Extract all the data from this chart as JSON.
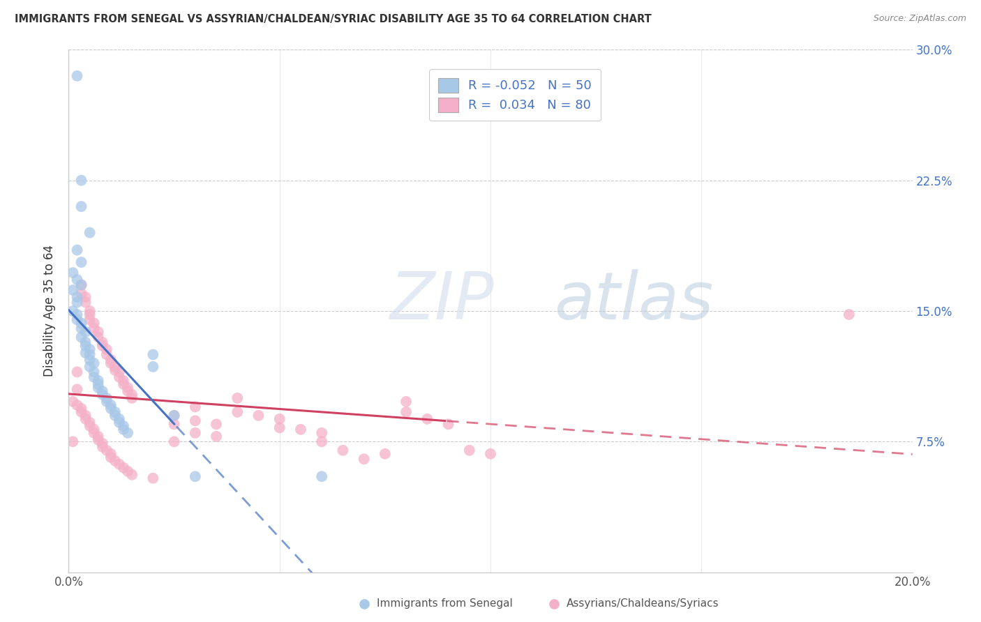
{
  "title": "IMMIGRANTS FROM SENEGAL VS ASSYRIAN/CHALDEAN/SYRIAC DISABILITY AGE 35 TO 64 CORRELATION CHART",
  "source": "Source: ZipAtlas.com",
  "ylabel": "Disability Age 35 to 64",
  "legend_blue_label": "Immigrants from Senegal",
  "legend_pink_label": "Assyrians/Chaldeans/Syriacs",
  "blue_scatter_color": "#a8c8e8",
  "pink_scatter_color": "#f4b0c8",
  "blue_line_color": "#4472c4",
  "pink_line_color": "#d04060",
  "legend_text_color": "#4472c4",
  "watermark_zip_color": "#c8d8ec",
  "watermark_atlas_color": "#b0c8e0",
  "xlim": [
    0.0,
    0.2
  ],
  "ylim": [
    0.0,
    0.3
  ],
  "yticks": [
    0.075,
    0.15,
    0.225,
    0.3
  ],
  "ytick_labels": [
    "7.5%",
    "15.0%",
    "22.5%",
    "30.0%"
  ],
  "xtick_labels_show": [
    "0.0%",
    "20.0%"
  ],
  "xticks_show": [
    0.0,
    0.2
  ],
  "figsize": [
    14.06,
    8.92
  ],
  "dpi": 100,
  "blue_points": [
    [
      0.002,
      0.285
    ],
    [
      0.003,
      0.225
    ],
    [
      0.003,
      0.21
    ],
    [
      0.005,
      0.195
    ],
    [
      0.002,
      0.185
    ],
    [
      0.003,
      0.178
    ],
    [
      0.001,
      0.172
    ],
    [
      0.002,
      0.168
    ],
    [
      0.003,
      0.165
    ],
    [
      0.001,
      0.162
    ],
    [
      0.002,
      0.158
    ],
    [
      0.002,
      0.155
    ],
    [
      0.001,
      0.15
    ],
    [
      0.002,
      0.148
    ],
    [
      0.002,
      0.145
    ],
    [
      0.003,
      0.143
    ],
    [
      0.003,
      0.14
    ],
    [
      0.004,
      0.138
    ],
    [
      0.003,
      0.135
    ],
    [
      0.004,
      0.132
    ],
    [
      0.004,
      0.13
    ],
    [
      0.005,
      0.128
    ],
    [
      0.004,
      0.126
    ],
    [
      0.005,
      0.125
    ],
    [
      0.005,
      0.122
    ],
    [
      0.006,
      0.12
    ],
    [
      0.005,
      0.118
    ],
    [
      0.006,
      0.115
    ],
    [
      0.006,
      0.112
    ],
    [
      0.007,
      0.11
    ],
    [
      0.007,
      0.108
    ],
    [
      0.007,
      0.106
    ],
    [
      0.008,
      0.104
    ],
    [
      0.008,
      0.102
    ],
    [
      0.009,
      0.1
    ],
    [
      0.009,
      0.098
    ],
    [
      0.01,
      0.096
    ],
    [
      0.01,
      0.094
    ],
    [
      0.011,
      0.092
    ],
    [
      0.011,
      0.09
    ],
    [
      0.012,
      0.088
    ],
    [
      0.012,
      0.086
    ],
    [
      0.013,
      0.084
    ],
    [
      0.013,
      0.082
    ],
    [
      0.014,
      0.08
    ],
    [
      0.02,
      0.125
    ],
    [
      0.02,
      0.118
    ],
    [
      0.025,
      0.09
    ],
    [
      0.03,
      0.055
    ],
    [
      0.06,
      0.055
    ]
  ],
  "pink_points": [
    [
      0.001,
      0.075
    ],
    [
      0.002,
      0.105
    ],
    [
      0.002,
      0.115
    ],
    [
      0.003,
      0.165
    ],
    [
      0.003,
      0.16
    ],
    [
      0.004,
      0.158
    ],
    [
      0.004,
      0.155
    ],
    [
      0.005,
      0.15
    ],
    [
      0.005,
      0.148
    ],
    [
      0.005,
      0.145
    ],
    [
      0.006,
      0.143
    ],
    [
      0.006,
      0.14
    ],
    [
      0.007,
      0.138
    ],
    [
      0.007,
      0.135
    ],
    [
      0.008,
      0.132
    ],
    [
      0.008,
      0.13
    ],
    [
      0.009,
      0.128
    ],
    [
      0.009,
      0.125
    ],
    [
      0.01,
      0.122
    ],
    [
      0.01,
      0.12
    ],
    [
      0.011,
      0.118
    ],
    [
      0.011,
      0.116
    ],
    [
      0.012,
      0.115
    ],
    [
      0.012,
      0.112
    ],
    [
      0.013,
      0.11
    ],
    [
      0.013,
      0.108
    ],
    [
      0.014,
      0.106
    ],
    [
      0.014,
      0.104
    ],
    [
      0.015,
      0.102
    ],
    [
      0.015,
      0.1
    ],
    [
      0.001,
      0.098
    ],
    [
      0.002,
      0.096
    ],
    [
      0.003,
      0.094
    ],
    [
      0.003,
      0.092
    ],
    [
      0.004,
      0.09
    ],
    [
      0.004,
      0.088
    ],
    [
      0.005,
      0.086
    ],
    [
      0.005,
      0.084
    ],
    [
      0.006,
      0.082
    ],
    [
      0.006,
      0.08
    ],
    [
      0.007,
      0.078
    ],
    [
      0.007,
      0.076
    ],
    [
      0.008,
      0.074
    ],
    [
      0.008,
      0.072
    ],
    [
      0.009,
      0.07
    ],
    [
      0.01,
      0.068
    ],
    [
      0.01,
      0.066
    ],
    [
      0.011,
      0.064
    ],
    [
      0.012,
      0.062
    ],
    [
      0.013,
      0.06
    ],
    [
      0.014,
      0.058
    ],
    [
      0.015,
      0.056
    ],
    [
      0.02,
      0.054
    ],
    [
      0.025,
      0.075
    ],
    [
      0.025,
      0.085
    ],
    [
      0.025,
      0.09
    ],
    [
      0.03,
      0.08
    ],
    [
      0.03,
      0.095
    ],
    [
      0.03,
      0.087
    ],
    [
      0.035,
      0.085
    ],
    [
      0.035,
      0.078
    ],
    [
      0.04,
      0.1
    ],
    [
      0.04,
      0.092
    ],
    [
      0.045,
      0.09
    ],
    [
      0.05,
      0.088
    ],
    [
      0.05,
      0.083
    ],
    [
      0.055,
      0.082
    ],
    [
      0.06,
      0.08
    ],
    [
      0.06,
      0.075
    ],
    [
      0.065,
      0.07
    ],
    [
      0.07,
      0.065
    ],
    [
      0.075,
      0.068
    ],
    [
      0.08,
      0.098
    ],
    [
      0.08,
      0.092
    ],
    [
      0.085,
      0.088
    ],
    [
      0.09,
      0.085
    ],
    [
      0.095,
      0.07
    ],
    [
      0.1,
      0.068
    ],
    [
      0.185,
      0.148
    ]
  ]
}
